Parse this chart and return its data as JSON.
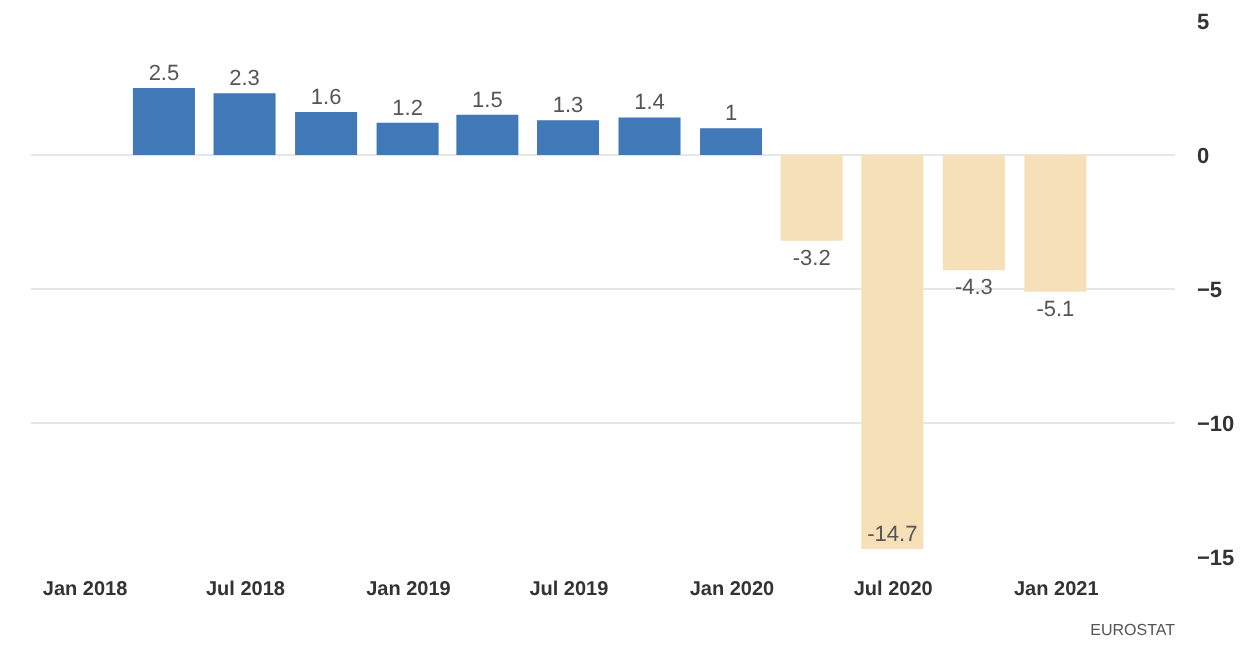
{
  "chart_data": {
    "type": "bar",
    "x": [
      "2018-03-31",
      "2018-06-30",
      "2018-09-30",
      "2018-12-31",
      "2019-03-31",
      "2019-06-30",
      "2019-09-30",
      "2019-12-31",
      "2020-03-31",
      "2020-06-30",
      "2020-09-30",
      "2020-12-31"
    ],
    "values": [
      2.5,
      2.3,
      1.6,
      1.2,
      1.5,
      1.3,
      1.4,
      1,
      -3.2,
      -14.7,
      -4.3,
      -5.1
    ],
    "colors": [
      "#4179b8",
      "#4179b8",
      "#4179b8",
      "#4179b8",
      "#4179b8",
      "#4179b8",
      "#4179b8",
      "#4179b8",
      "#f6e0b8",
      "#f6e0b8",
      "#f6e0b8",
      "#f6e0b8"
    ],
    "value_labels": [
      "2.5",
      "2.3",
      "1.6",
      "1.2",
      "1.5",
      "1.3",
      "1.4",
      "1",
      "-3.2",
      "-14.7",
      "-4.3",
      "-5.1"
    ],
    "xlim": [
      "2017-11-01",
      "2021-05-15"
    ],
    "xticks": [
      {
        "value": "2018-01-01",
        "label": "Jan 2018"
      },
      {
        "value": "2018-07-01",
        "label": "Jul 2018"
      },
      {
        "value": "2019-01-01",
        "label": "Jan 2019"
      },
      {
        "value": "2019-07-01",
        "label": "Jul 2019"
      },
      {
        "value": "2020-01-01",
        "label": "Jan 2020"
      },
      {
        "value": "2020-07-01",
        "label": "Jul 2020"
      },
      {
        "value": "2021-01-01",
        "label": "Jan 2021"
      }
    ],
    "ylim": [
      -15,
      5
    ],
    "yticks": [
      -15,
      -10,
      -5,
      0,
      5
    ],
    "grid": "y",
    "annotations": [
      "EUROSTAT"
    ]
  }
}
